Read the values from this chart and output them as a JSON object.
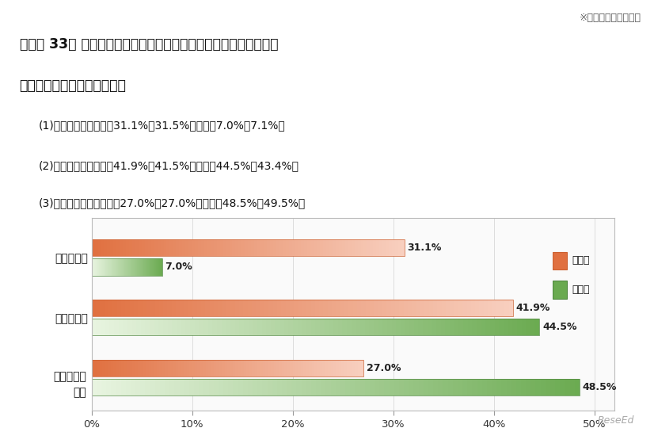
{
  "title_note": "※（）は昨年度の数値",
  "title_line1": "「質問 33」 配置されなかった時に副校長・教頭としてどのように",
  "title_line2": "　　　　　関わりましたか。",
  "sub1": "(1)担任の代替　　小　31.1%（31.5%）　中　7.0%（7.1%）",
  "sub2": "(2)授業の一部　　小　41.9%（41.5%）　中　44.5%（43.4%）",
  "sub3": "(3)授業以外の活動　小　27.0%（27.0%）　中　48.5%（49.5%）",
  "cat1": "担任の代替",
  "cat2": "授業の一部",
  "cat3_line1": "授業以外の",
  "cat3_line2": "活動",
  "elementary_values": [
    31.1,
    41.9,
    27.0
  ],
  "junior_values": [
    7.0,
    44.5,
    48.5
  ],
  "elem_color_dark": "#E07040",
  "elem_color_light": "#F8D0C0",
  "jun_color_dark": "#6AAA50",
  "jun_color_light": "#E8F4E0",
  "xtick_values": [
    0,
    10,
    20,
    30,
    40,
    50
  ],
  "xtick_labels": [
    "0%",
    "10%",
    "20%",
    "30%",
    "40%",
    "50%"
  ],
  "legend_elem": "小学校",
  "legend_jun": "中学校",
  "bg_color": "#FFFFFF",
  "chart_bg": "#FAFAFA",
  "border_color": "#BBBBBB"
}
